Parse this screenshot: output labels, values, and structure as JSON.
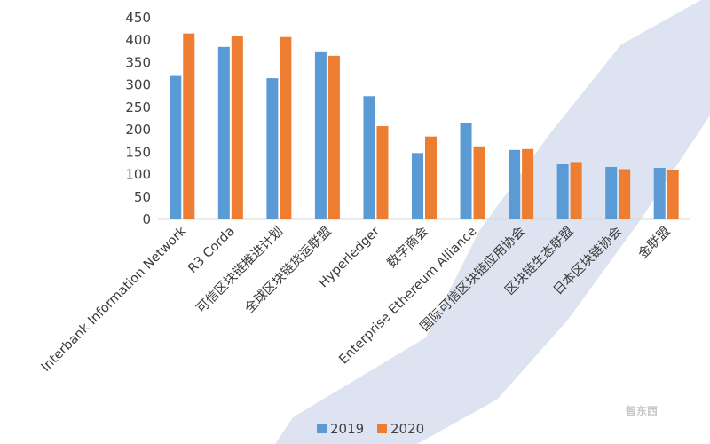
{
  "chart_data": {
    "type": "bar",
    "categories": [
      "Interbank Information Network",
      "R3 Corda",
      "可信区块链推进计划",
      "全球区块链货运联盟",
      "Hyperledger",
      "数字商会",
      "Enterprise Ethereum Alliance",
      "国际可信区块链应用协会",
      "区块链生态联盟",
      "日本区块链协会",
      "金联盟"
    ],
    "series": [
      {
        "name": "2019",
        "values": [
          320,
          385,
          315,
          375,
          275,
          148,
          215,
          155,
          123,
          117,
          115
        ]
      },
      {
        "name": "2020",
        "values": [
          415,
          410,
          407,
          365,
          208,
          185,
          163,
          157,
          128,
          112,
          110
        ]
      }
    ],
    "ylim": [
      0,
      450
    ],
    "yticks": [
      "0",
      "50",
      "100",
      "150",
      "200",
      "250",
      "300",
      "350",
      "400",
      "450"
    ],
    "grid": false,
    "legend_position": "bottom",
    "colors": {
      "2019": "#5b9bd5",
      "2020": "#ed7d31"
    }
  },
  "watermark": {
    "text": "智东西"
  }
}
